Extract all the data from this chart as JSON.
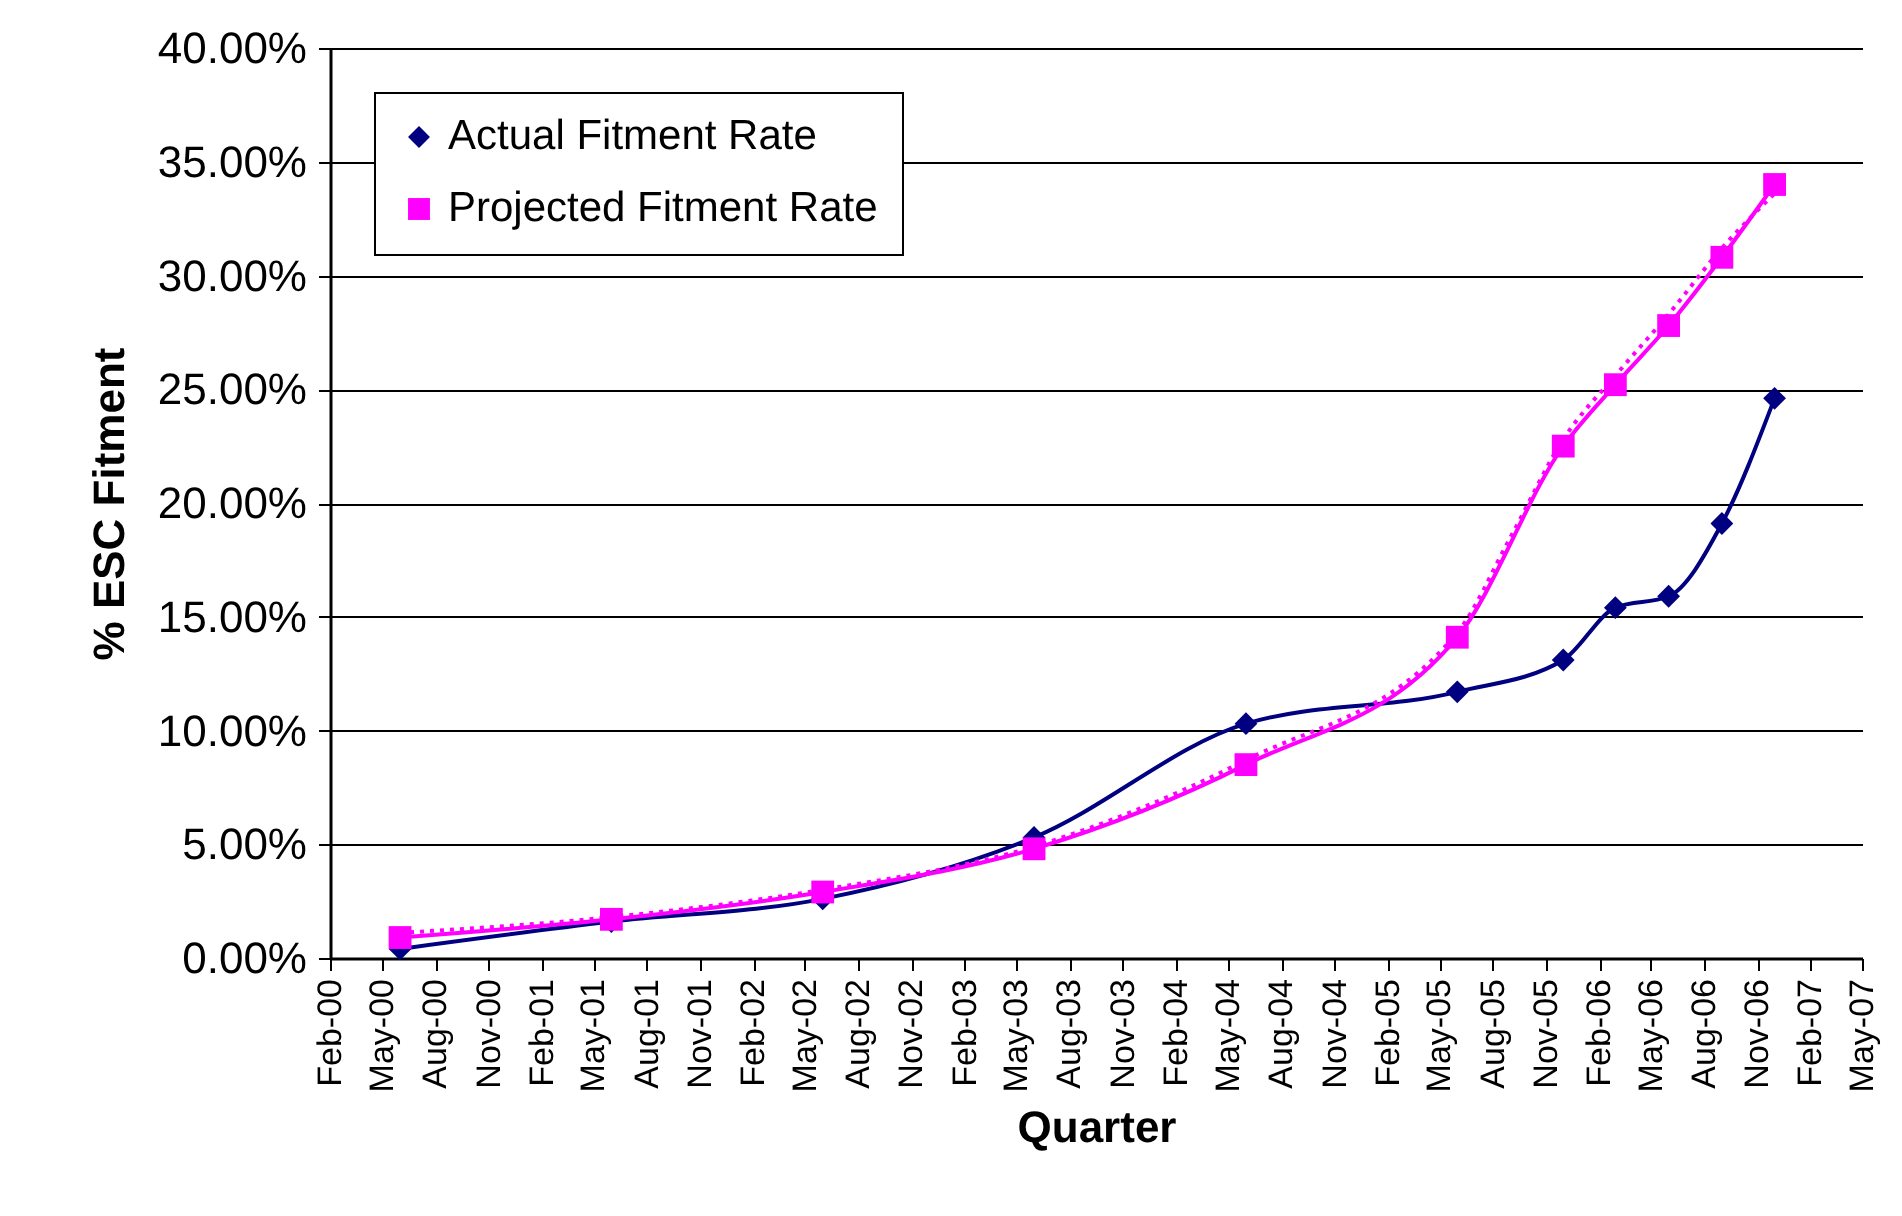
{
  "chart_data": {
    "type": "line",
    "xlabel": "Quarter",
    "ylabel": "% ESC Fitment",
    "series": [
      {
        "name": "Actual Fitment Rate",
        "color": "#000080",
        "marker": "diamond",
        "line_style": "solid",
        "x": [
          "2000-06",
          "2001-06",
          "2002-06",
          "2003-06",
          "2004-06",
          "2005-06",
          "2005-12",
          "2006-03",
          "2006-06",
          "2006-09",
          "2006-12"
        ],
        "values": [
          0.4,
          1.6,
          2.6,
          5.3,
          10.3,
          11.7,
          13.1,
          15.4,
          15.9,
          19.1,
          24.6
        ]
      },
      {
        "name": "Projected Fitment Rate",
        "color": "#ff00ff",
        "marker": "square",
        "line_style": "solid",
        "x": [
          "2000-06",
          "2001-06",
          "2002-06",
          "2003-06",
          "2004-06",
          "2005-06",
          "2005-12",
          "2006-03",
          "2006-06",
          "2006-09",
          "2006-12"
        ],
        "values": [
          0.9,
          1.7,
          2.9,
          4.8,
          8.5,
          14.1,
          22.5,
          25.2,
          27.8,
          30.8,
          34.0
        ]
      },
      {
        "color": "#ff00ff",
        "marker": "none",
        "line_style": "dotted",
        "x": [
          "2000-06",
          "2001-06",
          "2002-06",
          "2003-06",
          "2004-06",
          "2005-06",
          "2005-09",
          "2005-12",
          "2006-03",
          "2006-06",
          "2006-09",
          "2006-12"
        ],
        "values": [
          1.1,
          1.8,
          3.0,
          4.9,
          8.7,
          14.3,
          18.5,
          22.8,
          25.6,
          28.3,
          31.2,
          33.6
        ]
      }
    ],
    "xlim": [
      "2000-02",
      "2007-05"
    ],
    "xticks": [
      {
        "value": "2000-02",
        "label": "Feb-00"
      },
      {
        "value": "2000-05",
        "label": "May-00"
      },
      {
        "value": "2000-08",
        "label": "Aug-00"
      },
      {
        "value": "2000-11",
        "label": "Nov-00"
      },
      {
        "value": "2001-02",
        "label": "Feb-01"
      },
      {
        "value": "2001-05",
        "label": "May-01"
      },
      {
        "value": "2001-08",
        "label": "Aug-01"
      },
      {
        "value": "2001-11",
        "label": "Nov-01"
      },
      {
        "value": "2002-02",
        "label": "Feb-02"
      },
      {
        "value": "2002-05",
        "label": "May-02"
      },
      {
        "value": "2002-08",
        "label": "Aug-02"
      },
      {
        "value": "2002-11",
        "label": "Nov-02"
      },
      {
        "value": "2003-02",
        "label": "Feb-03"
      },
      {
        "value": "2003-05",
        "label": "May-03"
      },
      {
        "value": "2003-08",
        "label": "Aug-03"
      },
      {
        "value": "2003-11",
        "label": "Nov-03"
      },
      {
        "value": "2004-02",
        "label": "Feb-04"
      },
      {
        "value": "2004-05",
        "label": "May-04"
      },
      {
        "value": "2004-08",
        "label": "Aug-04"
      },
      {
        "value": "2004-11",
        "label": "Nov-04"
      },
      {
        "value": "2005-02",
        "label": "Feb-05"
      },
      {
        "value": "2005-05",
        "label": "May-05"
      },
      {
        "value": "2005-08",
        "label": "Aug-05"
      },
      {
        "value": "2005-11",
        "label": "Nov-05"
      },
      {
        "value": "2006-02",
        "label": "Feb-06"
      },
      {
        "value": "2006-05",
        "label": "May-06"
      },
      {
        "value": "2006-08",
        "label": "Aug-06"
      },
      {
        "value": "2006-11",
        "label": "Nov-06"
      },
      {
        "value": "2007-02",
        "label": "Feb-07"
      },
      {
        "value": "2007-05",
        "label": "May-07"
      }
    ],
    "ylim": [
      0,
      40
    ],
    "yticks": [
      {
        "value": 0,
        "label": "0.00%"
      },
      {
        "value": 5,
        "label": "5.00%"
      },
      {
        "value": 10,
        "label": "10.00%"
      },
      {
        "value": 15,
        "label": "15.00%"
      },
      {
        "value": 20,
        "label": "20.00%"
      },
      {
        "value": 25,
        "label": "25.00%"
      },
      {
        "value": 30,
        "label": "30.00%"
      },
      {
        "value": 35,
        "label": "35.00%"
      },
      {
        "value": 40,
        "label": "40.00%"
      }
    ],
    "grid": "y",
    "legend": "top left"
  }
}
